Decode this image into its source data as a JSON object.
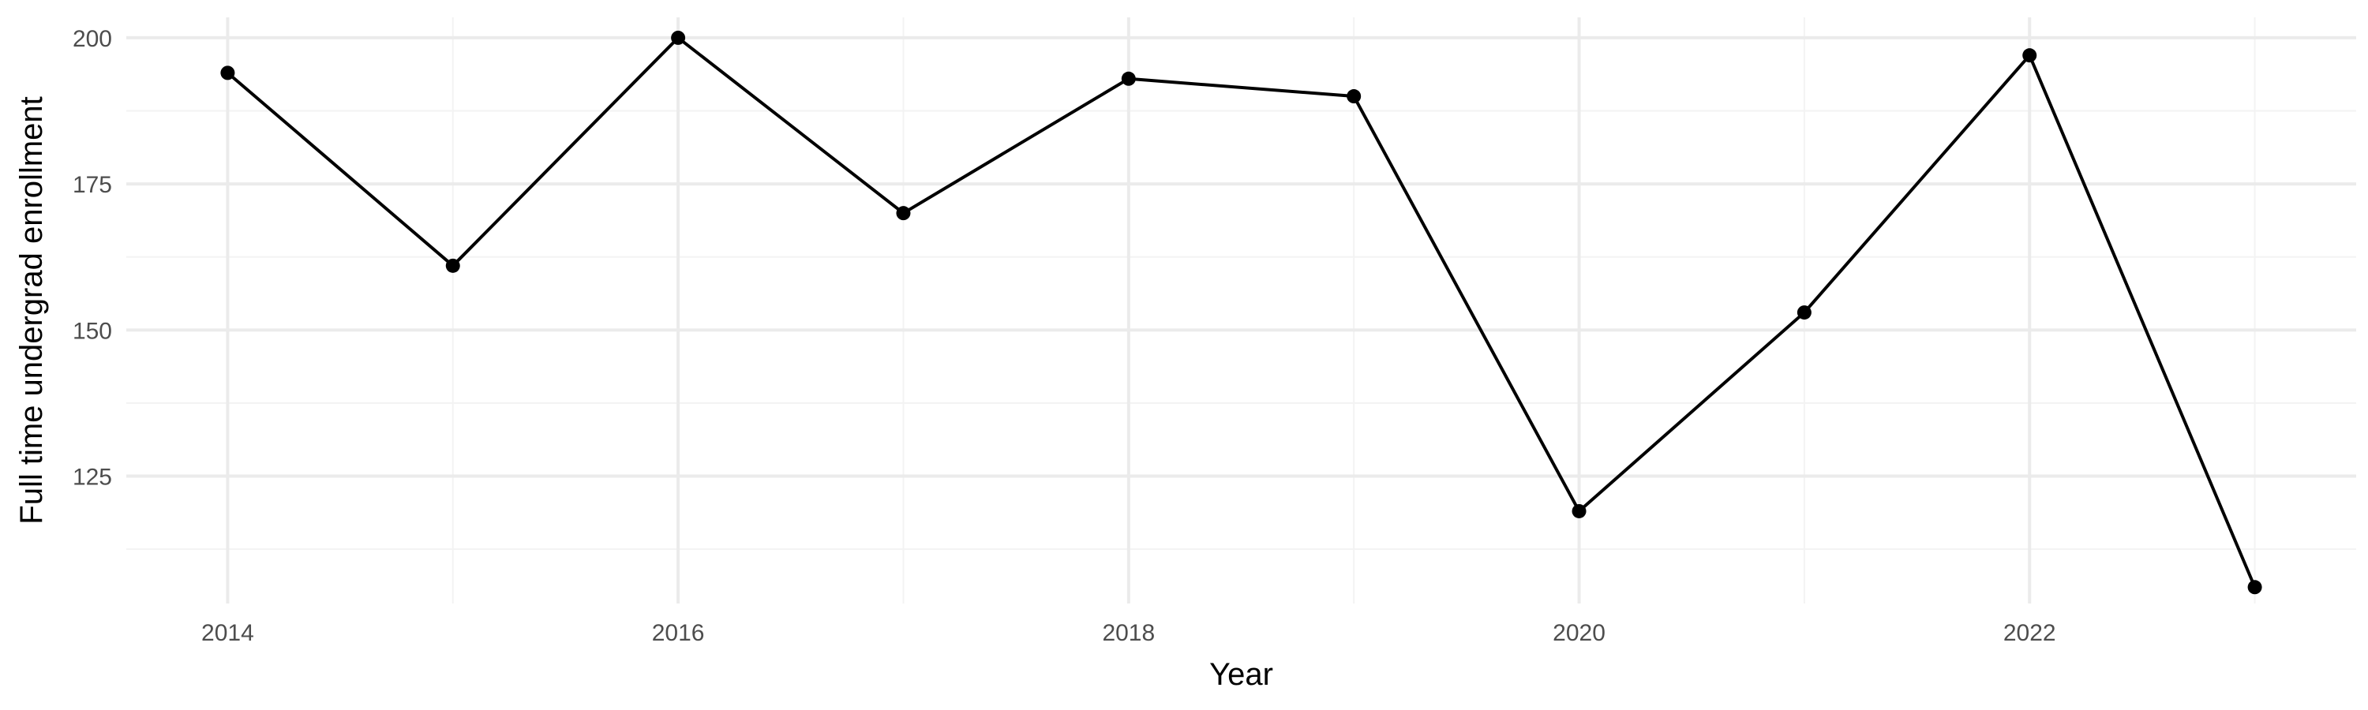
{
  "chart_data": {
    "type": "line",
    "title": "",
    "xlabel": "Year",
    "ylabel": "Full time undergrad enrollment",
    "x": [
      2014,
      2015,
      2016,
      2017,
      2018,
      2019,
      2020,
      2021,
      2022,
      2023
    ],
    "series": [
      {
        "values": [
          194,
          161,
          200,
          170,
          193,
          190,
          119,
          153,
          197,
          106
        ]
      }
    ],
    "xlim": [
      2013.55,
      2023.45
    ],
    "ylim": [
      103.2,
      203.5
    ],
    "x_ticks": [
      2014,
      2016,
      2018,
      2020,
      2022
    ],
    "x_tick_labels": [
      "2014",
      "2016",
      "2018",
      "2020",
      "2022"
    ],
    "x_minor_ticks": [
      2015,
      2017,
      2019,
      2021,
      2023
    ],
    "y_ticks": [
      125,
      150,
      175,
      200
    ],
    "y_tick_labels": [
      "125",
      "150",
      "175",
      "200"
    ],
    "y_minor_ticks": [
      112.5,
      137.5,
      162.5,
      187.5
    ],
    "grid": true,
    "legend": "none",
    "colors": {
      "line": "#000000",
      "point": "#000000",
      "grid_major": "#ebebeb",
      "grid_minor": "#f3f3f3",
      "tick_text": "#4d4d4d"
    }
  }
}
